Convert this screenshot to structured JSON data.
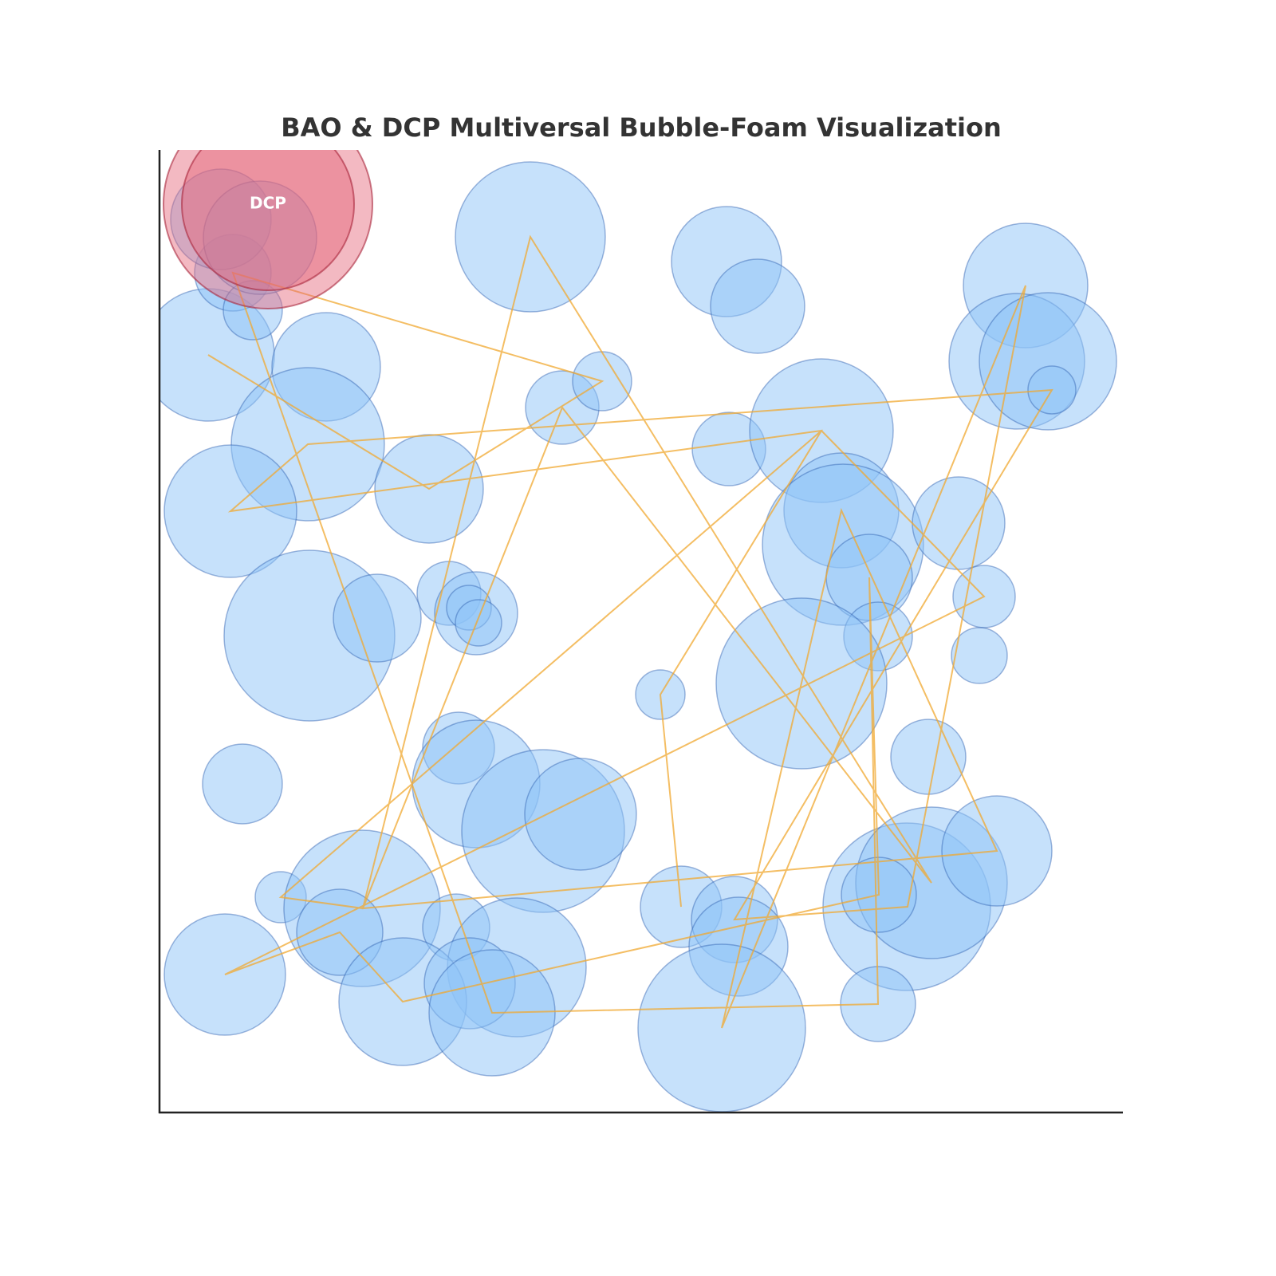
{
  "chart_data": {
    "type": "bubble",
    "title": "BAO & DCP Multiversal Bubble-Foam Visualization",
    "xlim": [
      0,
      1208
    ],
    "ylim": [
      0,
      1207
    ],
    "series": [
      {
        "color": "#8ec4f7",
        "x": [
          465,
          711,
          750,
          1086,
          1075,
          1114,
          1119,
          61,
          209,
          186,
          338,
          89,
          505,
          555,
          714,
          830,
          855,
          857,
          890,
          901,
          1002,
          1034,
          1028,
          188,
          273,
          363,
          397,
          388,
          400,
          628,
          805,
          964,
          104,
          375,
          397,
          481,
          528,
          152,
          254,
          226,
          82,
          372,
          448,
          305,
          389,
          417,
          654,
          721,
          726,
          705,
          937,
          968,
          1050,
          902,
          901,
          92,
          117,
          77,
          126
        ],
        "values": [
          1098,
          1067,
          1011,
          1037,
          942,
          942,
          906,
          950,
          935,
          838,
          782,
          754,
          884,
          917,
          832,
          855,
          755,
          712,
          671,
          597,
          739,
          647,
          573,
          598,
          620,
          651,
          626,
          633,
          614,
          524,
          538,
          446,
          412,
          457,
          412,
          353,
          374,
          270,
          256,
          226,
          173,
          232,
          182,
          139,
          162,
          125,
          258,
          242,
          208,
          106,
          258,
          288,
          328,
          273,
          136,
          1053,
          1006,
          1120,
          1097
        ],
        "sizes": [
          94,
          69,
          59,
          78,
          85,
          86,
          30,
          83,
          68,
          96,
          68,
          83,
          46,
          37,
          46,
          90,
          72,
          101,
          54,
          43,
          58,
          39,
          35,
          107,
          55,
          40,
          52,
          28,
          29,
          31,
          107,
          47,
          50,
          45,
          80,
          102,
          70,
          32,
          98,
          54,
          76,
          42,
          87,
          80,
          57,
          79,
          51,
          54,
          62,
          105,
          105,
          95,
          69,
          47,
          47,
          48,
          37,
          63,
          71
        ]
      }
    ],
    "path": {
      "color": "#f0a830",
      "x": [
        61,
        338,
        555,
        92,
        417,
        901,
        890,
        902,
        305,
        226,
        82,
        1034,
        830,
        152,
        255,
        505,
        968,
        465,
        255,
        1050,
        855,
        705,
        1086,
        938,
        721,
        1119,
        186,
        89,
        830,
        628,
        654
      ],
      "y": [
        950,
        782,
        917,
        1053,
        125,
        136,
        671,
        273,
        139,
        226,
        173,
        647,
        855,
        270,
        256,
        884,
        288,
        1098,
        256,
        328,
        755,
        106,
        1037,
        258,
        242,
        906,
        838,
        754,
        855,
        524,
        258
      ]
    },
    "highlight": {
      "label": "DCP",
      "color": "#e46478",
      "x": 136,
      "y": 1139,
      "sizes": [
        131,
        108
      ]
    }
  }
}
